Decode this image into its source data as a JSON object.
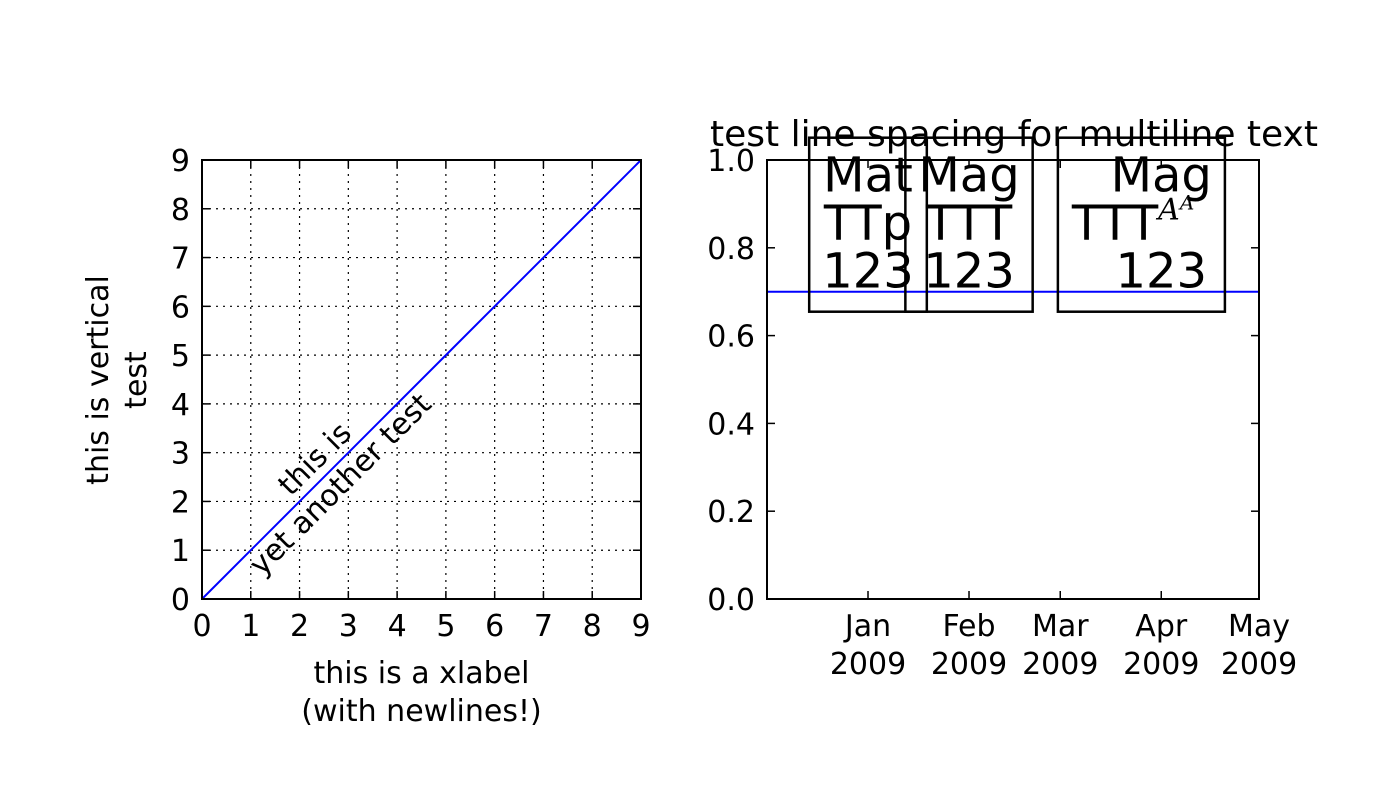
{
  "chart_data": [
    {
      "type": "line",
      "title": "",
      "xlabel": "this is a xlabel\n(with newlines!)",
      "ylabel": "this is vertical\ntest",
      "xlim": [
        0,
        9
      ],
      "ylim": [
        0,
        9
      ],
      "x_ticks": [
        0,
        1,
        2,
        3,
        4,
        5,
        6,
        7,
        8,
        9
      ],
      "y_ticks": [
        0,
        1,
        2,
        3,
        4,
        5,
        6,
        7,
        8,
        9
      ],
      "grid": true,
      "series": [
        {
          "x": [
            0,
            1,
            2,
            3,
            4,
            5,
            6,
            7,
            8,
            9
          ],
          "y": [
            0,
            1,
            2,
            3,
            4,
            5,
            6,
            7,
            8,
            9
          ],
          "color": "#0000ff"
        }
      ],
      "annotations": [
        {
          "text": "this is\nyet another test",
          "x": 2.5,
          "y": 2.5,
          "rotation_deg": 45
        }
      ]
    },
    {
      "type": "line",
      "title": "test line spacing for multiline text",
      "xlabel": "",
      "ylabel": "",
      "x_type": "date",
      "xlim": [
        "2008-12-01",
        "2009-05-01"
      ],
      "ylim": [
        0,
        1
      ],
      "x_ticks": [
        "2009-01-01",
        "2009-02-01",
        "2009-03-01",
        "2009-04-01",
        "2009-05-01"
      ],
      "x_tick_labels": [
        "Jan\n2009",
        "Feb\n2009",
        "Mar\n2009",
        "Apr\n2009",
        "May\n2009"
      ],
      "y_ticks": [
        0.0,
        0.2,
        0.4,
        0.6,
        0.8,
        1.0
      ],
      "y_tick_labels": [
        "0.0",
        "0.2",
        "0.4",
        "0.6",
        "0.8",
        "1.0"
      ],
      "grid": false,
      "series": [
        {
          "x": [
            "2008-12-01",
            "2009-05-01"
          ],
          "y": [
            0.7,
            0.7
          ],
          "color": "#0000ff"
        }
      ],
      "annotations": [
        {
          "text": "Mat\nTTp\n123",
          "x": "2009-01-01",
          "y": 0.7,
          "boxed": true
        },
        {
          "text": "Mag\nTTT\n123",
          "x": "2009-02-01",
          "y": 0.7,
          "boxed": true
        },
        {
          "text": "Mag\nTTT$^{A^A}$\n123",
          "x": "2009-04-01",
          "y": 0.7,
          "boxed": true
        }
      ]
    }
  ]
}
